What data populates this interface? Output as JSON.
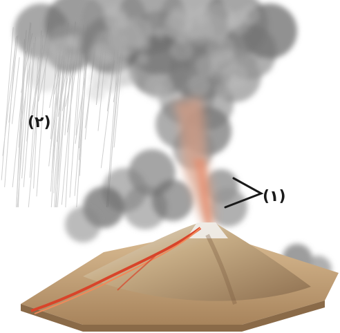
{
  "labels": {
    "one": "(۱)",
    "two": "(۲)"
  },
  "colors": {
    "ash": "#6f6f6f",
    "ash_light": "#b5b5b5",
    "lava": "#d8442a",
    "magma_glow": "#e8a27a",
    "ground": "#c9a57a",
    "ground_dark": "#8a6a48",
    "rain": "#c4c4c4"
  }
}
